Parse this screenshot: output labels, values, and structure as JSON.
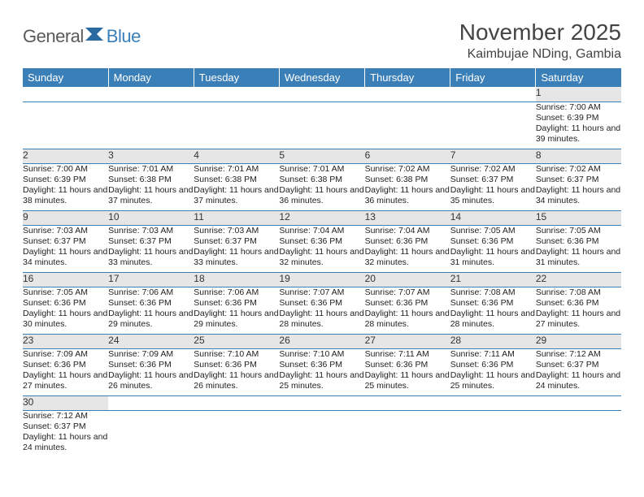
{
  "brand": {
    "part1": "General",
    "part2": "Blue"
  },
  "title": "November 2025",
  "location": "Kaimbujae NDing, Gambia",
  "colors": {
    "header_bg": "#3b7fb8",
    "header_text": "#ffffff",
    "daynum_bg": "#e6e6e6",
    "row_border": "#3b7fb8",
    "logo_gray": "#5a5a5a",
    "logo_blue": "#3b7fb8"
  },
  "weekdays": [
    "Sunday",
    "Monday",
    "Tuesday",
    "Wednesday",
    "Thursday",
    "Friday",
    "Saturday"
  ],
  "weeks": [
    {
      "nums": [
        "",
        "",
        "",
        "",
        "",
        "",
        "1"
      ],
      "cells": [
        null,
        null,
        null,
        null,
        null,
        null,
        {
          "sunrise": "7:00 AM",
          "sunset": "6:39 PM",
          "daylight": "11 hours and 39 minutes."
        }
      ]
    },
    {
      "nums": [
        "2",
        "3",
        "4",
        "5",
        "6",
        "7",
        "8"
      ],
      "cells": [
        {
          "sunrise": "7:00 AM",
          "sunset": "6:39 PM",
          "daylight": "11 hours and 38 minutes."
        },
        {
          "sunrise": "7:01 AM",
          "sunset": "6:38 PM",
          "daylight": "11 hours and 37 minutes."
        },
        {
          "sunrise": "7:01 AM",
          "sunset": "6:38 PM",
          "daylight": "11 hours and 37 minutes."
        },
        {
          "sunrise": "7:01 AM",
          "sunset": "6:38 PM",
          "daylight": "11 hours and 36 minutes."
        },
        {
          "sunrise": "7:02 AM",
          "sunset": "6:38 PM",
          "daylight": "11 hours and 36 minutes."
        },
        {
          "sunrise": "7:02 AM",
          "sunset": "6:37 PM",
          "daylight": "11 hours and 35 minutes."
        },
        {
          "sunrise": "7:02 AM",
          "sunset": "6:37 PM",
          "daylight": "11 hours and 34 minutes."
        }
      ]
    },
    {
      "nums": [
        "9",
        "10",
        "11",
        "12",
        "13",
        "14",
        "15"
      ],
      "cells": [
        {
          "sunrise": "7:03 AM",
          "sunset": "6:37 PM",
          "daylight": "11 hours and 34 minutes."
        },
        {
          "sunrise": "7:03 AM",
          "sunset": "6:37 PM",
          "daylight": "11 hours and 33 minutes."
        },
        {
          "sunrise": "7:03 AM",
          "sunset": "6:37 PM",
          "daylight": "11 hours and 33 minutes."
        },
        {
          "sunrise": "7:04 AM",
          "sunset": "6:36 PM",
          "daylight": "11 hours and 32 minutes."
        },
        {
          "sunrise": "7:04 AM",
          "sunset": "6:36 PM",
          "daylight": "11 hours and 32 minutes."
        },
        {
          "sunrise": "7:05 AM",
          "sunset": "6:36 PM",
          "daylight": "11 hours and 31 minutes."
        },
        {
          "sunrise": "7:05 AM",
          "sunset": "6:36 PM",
          "daylight": "11 hours and 31 minutes."
        }
      ]
    },
    {
      "nums": [
        "16",
        "17",
        "18",
        "19",
        "20",
        "21",
        "22"
      ],
      "cells": [
        {
          "sunrise": "7:05 AM",
          "sunset": "6:36 PM",
          "daylight": "11 hours and 30 minutes."
        },
        {
          "sunrise": "7:06 AM",
          "sunset": "6:36 PM",
          "daylight": "11 hours and 29 minutes."
        },
        {
          "sunrise": "7:06 AM",
          "sunset": "6:36 PM",
          "daylight": "11 hours and 29 minutes."
        },
        {
          "sunrise": "7:07 AM",
          "sunset": "6:36 PM",
          "daylight": "11 hours and 28 minutes."
        },
        {
          "sunrise": "7:07 AM",
          "sunset": "6:36 PM",
          "daylight": "11 hours and 28 minutes."
        },
        {
          "sunrise": "7:08 AM",
          "sunset": "6:36 PM",
          "daylight": "11 hours and 28 minutes."
        },
        {
          "sunrise": "7:08 AM",
          "sunset": "6:36 PM",
          "daylight": "11 hours and 27 minutes."
        }
      ]
    },
    {
      "nums": [
        "23",
        "24",
        "25",
        "26",
        "27",
        "28",
        "29"
      ],
      "cells": [
        {
          "sunrise": "7:09 AM",
          "sunset": "6:36 PM",
          "daylight": "11 hours and 27 minutes."
        },
        {
          "sunrise": "7:09 AM",
          "sunset": "6:36 PM",
          "daylight": "11 hours and 26 minutes."
        },
        {
          "sunrise": "7:10 AM",
          "sunset": "6:36 PM",
          "daylight": "11 hours and 26 minutes."
        },
        {
          "sunrise": "7:10 AM",
          "sunset": "6:36 PM",
          "daylight": "11 hours and 25 minutes."
        },
        {
          "sunrise": "7:11 AM",
          "sunset": "6:36 PM",
          "daylight": "11 hours and 25 minutes."
        },
        {
          "sunrise": "7:11 AM",
          "sunset": "6:36 PM",
          "daylight": "11 hours and 25 minutes."
        },
        {
          "sunrise": "7:12 AM",
          "sunset": "6:37 PM",
          "daylight": "11 hours and 24 minutes."
        }
      ]
    },
    {
      "nums": [
        "30",
        "",
        "",
        "",
        "",
        "",
        ""
      ],
      "cells": [
        {
          "sunrise": "7:12 AM",
          "sunset": "6:37 PM",
          "daylight": "11 hours and 24 minutes."
        },
        null,
        null,
        null,
        null,
        null,
        null
      ]
    }
  ],
  "labels": {
    "sunrise": "Sunrise:",
    "sunset": "Sunset:",
    "daylight": "Daylight:"
  }
}
